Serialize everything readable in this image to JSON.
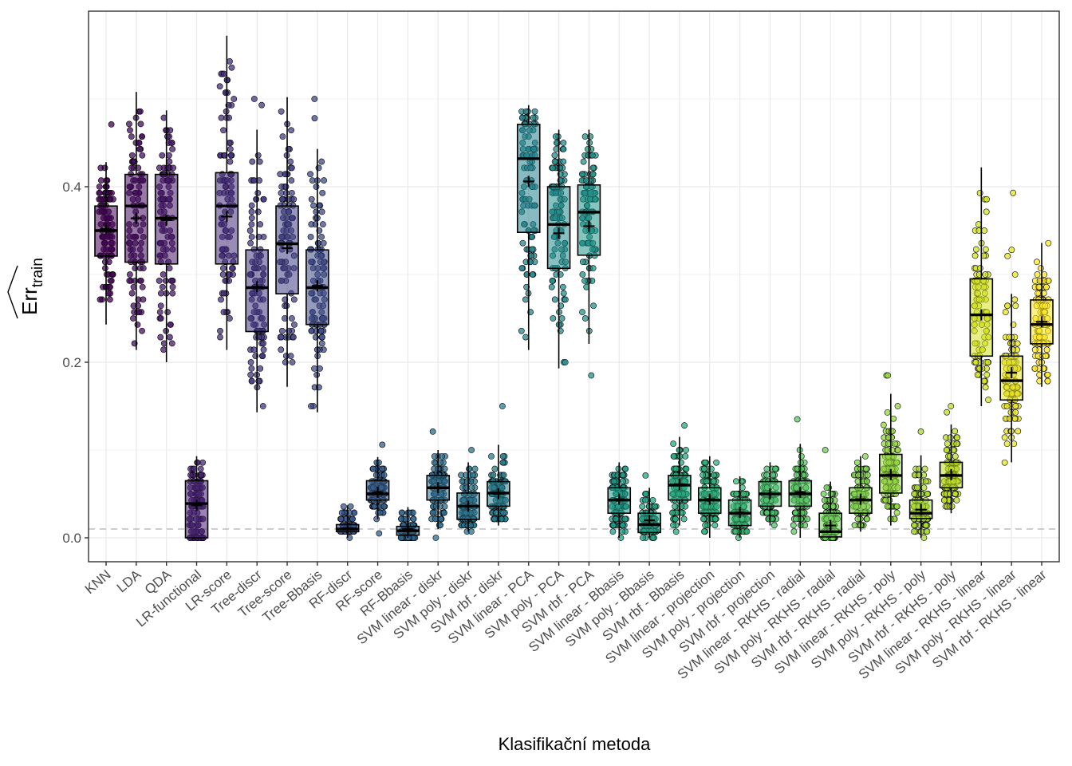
{
  "chart_data": {
    "type": "boxplot",
    "title": "",
    "xlabel": "Klasifikační metoda",
    "ylabel": "Err_train (hat)",
    "ylabel_main": "Err",
    "ylabel_sub": "train",
    "ylim": [
      -0.027,
      0.6
    ],
    "yticks": [
      0.0,
      0.2,
      0.4
    ],
    "ytick_labels": [
      "0.0",
      "0.2",
      "0.4"
    ],
    "grid": true,
    "legend": "none",
    "reference_line": {
      "y": 0.01,
      "style": "dashed",
      "color": "#bdbdbd"
    },
    "palette": "viridis",
    "categories": [
      "KNN",
      "LDA",
      "QDA",
      "LR-functional",
      "LR-score",
      "Tree-discr",
      "Tree-score",
      "Tree-Bbasis",
      "RF-discr",
      "RF-score",
      "RF-Bbasis",
      "SVM linear - diskr",
      "SVM poly - diskr",
      "SVM rbf - diskr",
      "SVM linear - PCA",
      "SVM poly - PCA",
      "SVM rbf - PCA",
      "SVM linear - Bbasis",
      "SVM poly - Bbasis",
      "SVM rbf - Bbasis",
      "SVM linear - projection",
      "SVM poly - projection",
      "SVM rbf - projection",
      "SVM linear - RKHS - radial",
      "SVM poly - RKHS - radial",
      "SVM rbf - RKHS - radial",
      "SVM linear - RKHS - poly",
      "SVM poly - RKHS - poly",
      "SVM rbf - RKHS - poly",
      "SVM linear - RKHS - linear",
      "SVM poly - RKHS - linear",
      "SVM rbf - RKHS - linear"
    ],
    "boxes": [
      {
        "q1": 0.321,
        "median": 0.35,
        "q3": 0.378,
        "whisker_low": 0.243,
        "whisker_high": 0.428,
        "mean": 0.352,
        "outliers": [
          0.471
        ]
      },
      {
        "q1": 0.314,
        "median": 0.378,
        "q3": 0.414,
        "whisker_low": 0.214,
        "whisker_high": 0.508,
        "mean": 0.364,
        "outliers": []
      },
      {
        "q1": 0.312,
        "median": 0.364,
        "q3": 0.414,
        "whisker_low": 0.2,
        "whisker_high": 0.487,
        "mean": 0.362,
        "outliers": []
      },
      {
        "q1": 0.0,
        "median": 0.039,
        "q3": 0.065,
        "whisker_low": 0.0,
        "whisker_high": 0.093,
        "mean": 0.037,
        "outliers": []
      },
      {
        "q1": 0.312,
        "median": 0.378,
        "q3": 0.416,
        "whisker_low": 0.214,
        "whisker_high": 0.572,
        "mean": 0.366,
        "outliers": []
      },
      {
        "q1": 0.235,
        "median": 0.285,
        "q3": 0.328,
        "whisker_low": 0.143,
        "whisker_high": 0.465,
        "mean": 0.286,
        "outliers": [
          0.5,
          0.493
        ]
      },
      {
        "q1": 0.278,
        "median": 0.335,
        "q3": 0.378,
        "whisker_low": 0.172,
        "whisker_high": 0.502,
        "mean": 0.33,
        "outliers": []
      },
      {
        "q1": 0.243,
        "median": 0.285,
        "q3": 0.328,
        "whisker_low": 0.143,
        "whisker_high": 0.443,
        "mean": 0.287,
        "outliers": [
          0.5,
          0.478
        ]
      },
      {
        "q1": 0.007,
        "median": 0.01,
        "q3": 0.015,
        "whisker_low": 0.0,
        "whisker_high": 0.037,
        "mean": 0.011,
        "outliers": []
      },
      {
        "q1": 0.043,
        "median": 0.05,
        "q3": 0.065,
        "whisker_low": 0.021,
        "whisker_high": 0.092,
        "mean": 0.052,
        "outliers": [
          0.106,
          0.005
        ]
      },
      {
        "q1": 0.003,
        "median": 0.008,
        "q3": 0.013,
        "whisker_low": 0.0,
        "whisker_high": 0.035,
        "mean": 0.01,
        "outliers": []
      },
      {
        "q1": 0.043,
        "median": 0.057,
        "q3": 0.071,
        "whisker_low": 0.01,
        "whisker_high": 0.1,
        "mean": 0.057,
        "outliers": [
          0.121,
          0.0
        ]
      },
      {
        "q1": 0.021,
        "median": 0.036,
        "q3": 0.051,
        "whisker_low": 0.007,
        "whisker_high": 0.086,
        "mean": 0.036,
        "outliers": [
          0.1
        ]
      },
      {
        "q1": 0.036,
        "median": 0.051,
        "q3": 0.064,
        "whisker_low": 0.014,
        "whisker_high": 0.106,
        "mean": 0.05,
        "outliers": [
          0.15
        ]
      },
      {
        "q1": 0.348,
        "median": 0.432,
        "q3": 0.471,
        "whisker_low": 0.214,
        "whisker_high": 0.493,
        "mean": 0.406,
        "outliers": []
      },
      {
        "q1": 0.307,
        "median": 0.357,
        "q3": 0.4,
        "whisker_low": 0.193,
        "whisker_high": 0.465,
        "mean": 0.347,
        "outliers": []
      },
      {
        "q1": 0.322,
        "median": 0.371,
        "q3": 0.402,
        "whisker_low": 0.221,
        "whisker_high": 0.465,
        "mean": 0.355,
        "outliers": [
          0.185
        ]
      },
      {
        "q1": 0.028,
        "median": 0.043,
        "q3": 0.057,
        "whisker_low": 0.0,
        "whisker_high": 0.086,
        "mean": 0.044,
        "outliers": []
      },
      {
        "q1": 0.006,
        "median": 0.015,
        "q3": 0.028,
        "whisker_low": 0.0,
        "whisker_high": 0.057,
        "mean": 0.02,
        "outliers": [
          0.071
        ]
      },
      {
        "q1": 0.043,
        "median": 0.06,
        "q3": 0.071,
        "whisker_low": 0.014,
        "whisker_high": 0.115,
        "mean": 0.061,
        "outliers": [
          0.128,
          0.007
        ]
      },
      {
        "q1": 0.028,
        "median": 0.043,
        "q3": 0.057,
        "whisker_low": 0.0,
        "whisker_high": 0.093,
        "mean": 0.044,
        "outliers": []
      },
      {
        "q1": 0.014,
        "median": 0.028,
        "q3": 0.043,
        "whisker_low": 0.0,
        "whisker_high": 0.07,
        "mean": 0.029,
        "outliers": []
      },
      {
        "q1": 0.036,
        "median": 0.05,
        "q3": 0.064,
        "whisker_low": 0.014,
        "whisker_high": 0.086,
        "mean": 0.05,
        "outliers": []
      },
      {
        "q1": 0.036,
        "median": 0.05,
        "q3": 0.065,
        "whisker_low": 0.0,
        "whisker_high": 0.107,
        "mean": 0.052,
        "outliers": [
          0.135
        ]
      },
      {
        "q1": 0.001,
        "median": 0.007,
        "q3": 0.028,
        "whisker_low": 0.0,
        "whisker_high": 0.064,
        "mean": 0.014,
        "outliers": [
          0.1
        ]
      },
      {
        "q1": 0.028,
        "median": 0.043,
        "q3": 0.057,
        "whisker_low": 0.007,
        "whisker_high": 0.093,
        "mean": 0.044,
        "outliers": []
      },
      {
        "q1": 0.051,
        "median": 0.071,
        "q3": 0.095,
        "whisker_low": 0.014,
        "whisker_high": 0.164,
        "mean": 0.072,
        "outliers": [
          0.185,
          0.185
        ]
      },
      {
        "q1": 0.022,
        "median": 0.028,
        "q3": 0.043,
        "whisker_low": 0.0,
        "whisker_high": 0.094,
        "mean": 0.032,
        "outliers": [
          0.121
        ]
      },
      {
        "q1": 0.057,
        "median": 0.071,
        "q3": 0.086,
        "whisker_low": 0.028,
        "whisker_high": 0.129,
        "mean": 0.072,
        "outliers": [
          0.15,
          0.143
        ]
      },
      {
        "q1": 0.207,
        "median": 0.254,
        "q3": 0.295,
        "whisker_low": 0.15,
        "whisker_high": 0.422,
        "mean": 0.254,
        "outliers": []
      },
      {
        "q1": 0.157,
        "median": 0.179,
        "q3": 0.207,
        "whisker_low": 0.086,
        "whisker_high": 0.278,
        "mean": 0.188,
        "outliers": [
          0.393,
          0.328,
          0.321,
          0.3
        ]
      },
      {
        "q1": 0.221,
        "median": 0.243,
        "q3": 0.271,
        "whisker_low": 0.172,
        "whisker_high": 0.336,
        "mean": 0.246,
        "outliers": []
      }
    ],
    "points_per_category": 100
  }
}
